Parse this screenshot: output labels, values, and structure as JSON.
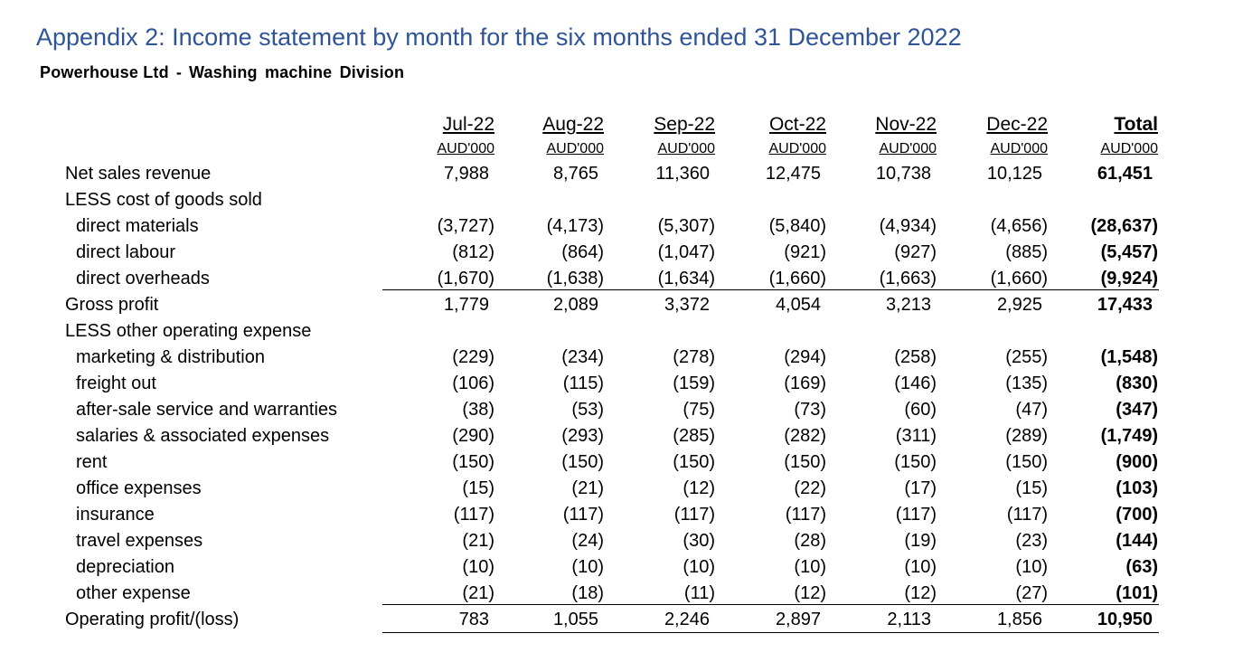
{
  "title": "Appendix 2: Income statement by month for the six months ended 31 December 2022",
  "subtitle": {
    "company": "Powerhouse Ltd",
    "separator": "-",
    "division": "Washing machine  Division"
  },
  "columns": [
    {
      "label": "Jul-22",
      "unit": "AUD'000"
    },
    {
      "label": "Aug-22",
      "unit": "AUD'000"
    },
    {
      "label": "Sep-22",
      "unit": "AUD'000"
    },
    {
      "label": "Oct-22",
      "unit": "AUD'000"
    },
    {
      "label": "Nov-22",
      "unit": "AUD'000"
    },
    {
      "label": "Dec-22",
      "unit": "AUD'000"
    },
    {
      "label": "Total",
      "unit": "AUD'000"
    }
  ],
  "rows": [
    {
      "label": "Net sales revenue",
      "values": [
        "7,988",
        "8,765",
        "11,360",
        "12,475",
        "10,738",
        "10,125",
        "61,451"
      ]
    },
    {
      "label": "LESS cost of goods sold",
      "values": []
    },
    {
      "label": "direct materials",
      "values": [
        "(3,727)",
        "(4,173)",
        "(5,307)",
        "(5,840)",
        "(4,934)",
        "(4,656)",
        "(28,637)"
      ]
    },
    {
      "label": "direct labour",
      "values": [
        "(812)",
        "(864)",
        "(1,047)",
        "(921)",
        "(927)",
        "(885)",
        "(5,457)"
      ]
    },
    {
      "label": "direct overheads",
      "values": [
        "(1,670)",
        "(1,638)",
        "(1,634)",
        "(1,660)",
        "(1,663)",
        "(1,660)",
        "(9,924)"
      ]
    },
    {
      "label": "Gross profit",
      "values": [
        "1,779",
        "2,089",
        "3,372",
        "4,054",
        "3,213",
        "2,925",
        "17,433"
      ]
    },
    {
      "label": "LESS other operating expense",
      "values": []
    },
    {
      "label": "marketing & distribution",
      "values": [
        "(229)",
        "(234)",
        "(278)",
        "(294)",
        "(258)",
        "(255)",
        "(1,548)"
      ]
    },
    {
      "label": "freight out",
      "values": [
        "(106)",
        "(115)",
        "(159)",
        "(169)",
        "(146)",
        "(135)",
        "(830)"
      ]
    },
    {
      "label": "after-sale service and warranties",
      "values": [
        "(38)",
        "(53)",
        "(75)",
        "(73)",
        "(60)",
        "(47)",
        "(347)"
      ]
    },
    {
      "label": "salaries & associated expenses",
      "values": [
        "(290)",
        "(293)",
        "(285)",
        "(282)",
        "(311)",
        "(289)",
        "(1,749)"
      ]
    },
    {
      "label": "rent",
      "values": [
        "(150)",
        "(150)",
        "(150)",
        "(150)",
        "(150)",
        "(150)",
        "(900)"
      ]
    },
    {
      "label": "office expenses",
      "values": [
        "(15)",
        "(21)",
        "(12)",
        "(22)",
        "(17)",
        "(15)",
        "(103)"
      ]
    },
    {
      "label": "insurance",
      "values": [
        "(117)",
        "(117)",
        "(117)",
        "(117)",
        "(117)",
        "(117)",
        "(700)"
      ]
    },
    {
      "label": "travel expenses",
      "values": [
        "(21)",
        "(24)",
        "(30)",
        "(28)",
        "(19)",
        "(23)",
        "(144)"
      ]
    },
    {
      "label": "depreciation",
      "values": [
        "(10)",
        "(10)",
        "(10)",
        "(10)",
        "(10)",
        "(10)",
        "(63)"
      ]
    },
    {
      "label": "other expense",
      "values": [
        "(21)",
        "(18)",
        "(11)",
        "(12)",
        "(12)",
        "(27)",
        "(101)"
      ]
    },
    {
      "label": "Operating profit/(loss)",
      "values": [
        "783",
        "1,055",
        "2,246",
        "2,897",
        "2,113",
        "1,856",
        "10,950"
      ]
    }
  ]
}
